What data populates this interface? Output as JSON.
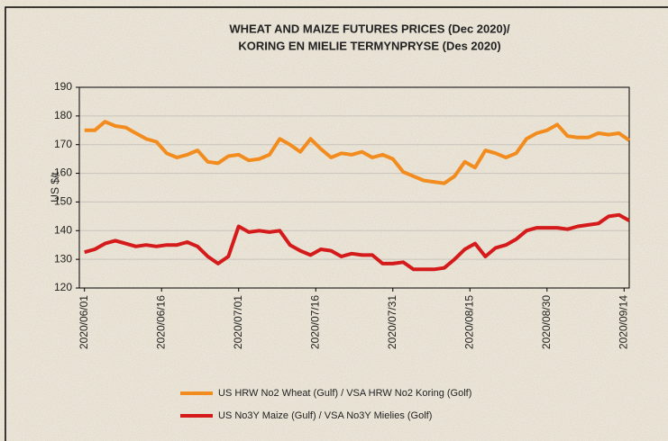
{
  "chart_data": {
    "type": "line",
    "title": [
      "WHEAT AND MAIZE FUTURES PRICES  (Dec 2020)/",
      "KORING EN MIELIE TERMYNPRYSE  (Des 2020)"
    ],
    "ylabel": "US $/t",
    "x": [
      "2020/06/01",
      "2020/06/03",
      "2020/06/05",
      "2020/06/07",
      "2020/06/09",
      "2020/06/11",
      "2020/06/13",
      "2020/06/15",
      "2020/06/17",
      "2020/06/19",
      "2020/06/21",
      "2020/06/23",
      "2020/06/25",
      "2020/06/27",
      "2020/06/29",
      "2020/07/01",
      "2020/07/03",
      "2020/07/05",
      "2020/07/07",
      "2020/07/09",
      "2020/07/11",
      "2020/07/13",
      "2020/07/15",
      "2020/07/17",
      "2020/07/19",
      "2020/07/21",
      "2020/07/23",
      "2020/07/25",
      "2020/07/27",
      "2020/07/29",
      "2020/07/31",
      "2020/08/02",
      "2020/08/04",
      "2020/08/06",
      "2020/08/08",
      "2020/08/10",
      "2020/08/12",
      "2020/08/14",
      "2020/08/16",
      "2020/08/18",
      "2020/08/20",
      "2020/08/22",
      "2020/08/24",
      "2020/08/26",
      "2020/08/28",
      "2020/08/30",
      "2020/09/01",
      "2020/09/03",
      "2020/09/05",
      "2020/09/07",
      "2020/09/09",
      "2020/09/11",
      "2020/09/13",
      "2020/09/15"
    ],
    "series": [
      {
        "name": "US HRW No2 Wheat (Gulf) / VSA HRW No2 Koring (Golf)",
        "color": "#f28c1e",
        "values": [
          175,
          175,
          178,
          176.5,
          176,
          174,
          172,
          171,
          167,
          165.5,
          166.5,
          168,
          164,
          163.5,
          166,
          166.5,
          164.5,
          165,
          166.5,
          172,
          170,
          167.5,
          172,
          168.5,
          165.5,
          167,
          166.5,
          167.5,
          165.5,
          166.5,
          165,
          160.5,
          159,
          157.5,
          157,
          156.5,
          159,
          164,
          162,
          168,
          167,
          165.5,
          167,
          172,
          174,
          175,
          177,
          173,
          172.5,
          172.5,
          174,
          173.5,
          174,
          171.5
        ]
      },
      {
        "name": "US No3Y Maize (Gulf) / VSA No3Y Mielies (Golf)",
        "color": "#d41a1a",
        "values": [
          132.5,
          133.5,
          135.5,
          136.5,
          135.5,
          134.5,
          135,
          134.5,
          135,
          135,
          136,
          134.5,
          131,
          128.5,
          131,
          141.5,
          139.5,
          140,
          139.5,
          140,
          135,
          133,
          131.5,
          133.5,
          133,
          131,
          132,
          131.5,
          131.5,
          128.5,
          128.5,
          129,
          126.5,
          126.5,
          126.5,
          127,
          130,
          133.5,
          135.5,
          131,
          134,
          135,
          137,
          140,
          141,
          141,
          141,
          140.5,
          141.5,
          142,
          142.5,
          145,
          145.5,
          143.5
        ]
      }
    ],
    "xlim": [
      "2020/05/31",
      "2020/09/15"
    ],
    "xticks": [
      "2020/06/01",
      "2020/06/16",
      "2020/07/01",
      "2020/07/16",
      "2020/07/31",
      "2020/08/15",
      "2020/08/30",
      "2020/09/14"
    ],
    "ylim": [
      120,
      190
    ],
    "yticks": [
      120,
      130,
      140,
      150,
      160,
      170,
      180,
      190
    ],
    "grid": true
  }
}
